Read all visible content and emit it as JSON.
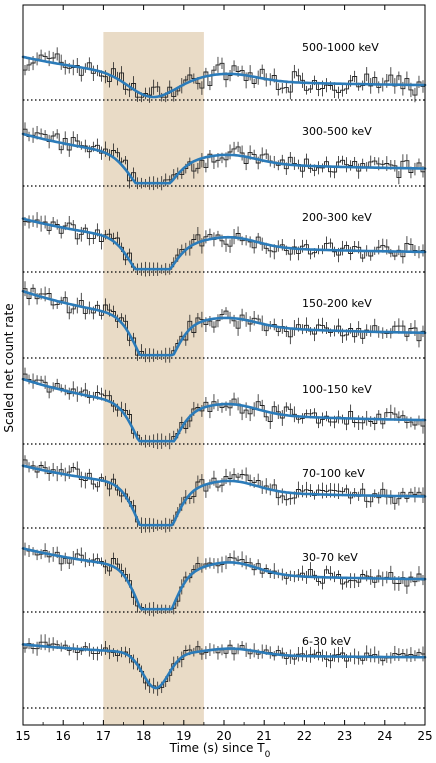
{
  "chart_data": {
    "type": "line",
    "xlabel": "Time (s) since T",
    "xlabel_subscript": "0",
    "ylabel": "Scaled net count rate",
    "xlim": [
      15,
      25
    ],
    "xticks": [
      "15",
      "16",
      "17",
      "18",
      "19",
      "20",
      "21",
      "22",
      "23",
      "24",
      "25"
    ],
    "highlight_interval": [
      17.0,
      19.5
    ],
    "colors": {
      "highlight": "#e8d9c3",
      "model": "#2b7bb9",
      "data": "#222222",
      "baseline": "#000000"
    },
    "panels": [
      {
        "label": "500-1000 keV",
        "start": 0.58,
        "end": 0.14,
        "dip_depth": 0.34,
        "dip_center": 18.2,
        "dip_width": 0.8,
        "bump": 0.1,
        "noise": 0.2
      },
      {
        "label": "300-500 keV",
        "start": 0.72,
        "end": 0.18,
        "dip_depth": 0.63,
        "dip_center": 18.2,
        "dip_width": 0.68,
        "bump": 0.12,
        "noise": 0.16
      },
      {
        "label": "200-300 keV",
        "start": 0.74,
        "end": 0.22,
        "dip_depth": 0.72,
        "dip_center": 18.2,
        "dip_width": 0.65,
        "bump": 0.14,
        "noise": 0.14
      },
      {
        "label": "150-200 keV",
        "start": 0.95,
        "end": 0.3,
        "dip_depth": 0.9,
        "dip_center": 18.3,
        "dip_width": 0.62,
        "bump": 0.12,
        "noise": 0.15
      },
      {
        "label": "100-150 keV",
        "start": 0.92,
        "end": 0.28,
        "dip_depth": 0.92,
        "dip_center": 18.3,
        "dip_width": 0.62,
        "bump": 0.14,
        "noise": 0.14
      },
      {
        "label": "70-100 keV",
        "start": 0.88,
        "end": 0.4,
        "dip_depth": 0.98,
        "dip_center": 18.3,
        "dip_width": 0.6,
        "bump": 0.16,
        "noise": 0.14
      },
      {
        "label": "30-70 keV",
        "start": 0.9,
        "end": 0.42,
        "dip_depth": 1.0,
        "dip_center": 18.3,
        "dip_width": 0.58,
        "bump": 0.18,
        "noise": 0.13
      },
      {
        "label": "6-30 keV",
        "start": 0.9,
        "end": 0.7,
        "dip_depth": 0.55,
        "dip_center": 18.3,
        "dip_width": 0.45,
        "bump": 0.1,
        "noise": 0.09
      }
    ]
  }
}
